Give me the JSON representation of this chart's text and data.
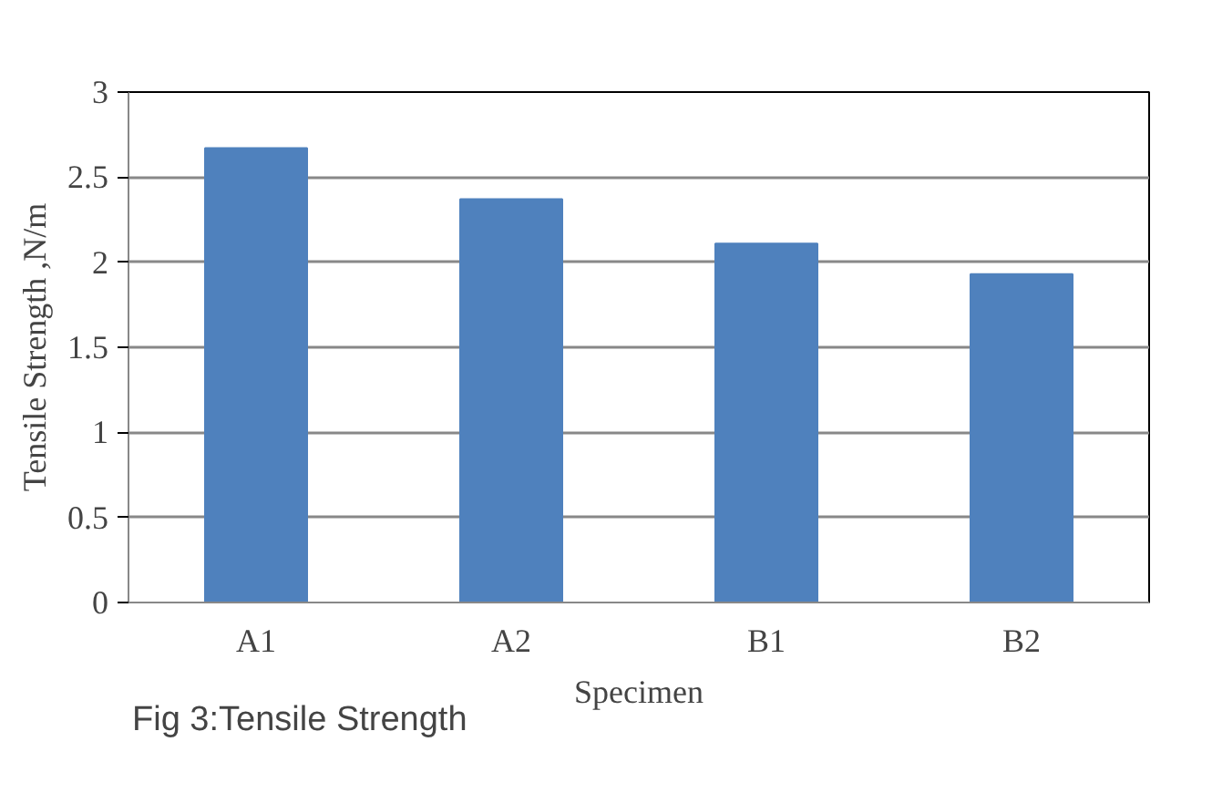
{
  "chart_data": {
    "type": "bar",
    "xlabel": "Specimen",
    "ylabel": "Tensile Strength ,N/m",
    "categories": [
      "A1",
      "A2",
      "B1",
      "B2"
    ],
    "values": [
      2.67,
      2.37,
      2.11,
      1.93
    ],
    "color": "#4f81bd",
    "ylim": [
      0,
      3
    ],
    "yticks": [
      0,
      0.5,
      1,
      1.5,
      2,
      2.5,
      3
    ],
    "grid": "y",
    "annotations": [
      "Fig 3:Tensile Strength"
    ]
  }
}
